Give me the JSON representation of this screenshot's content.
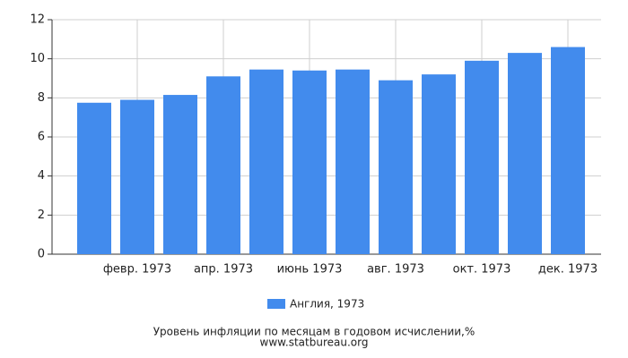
{
  "chart_data": {
    "type": "bar",
    "title": "Уровень инфляции по месяцам в годовом исчислении,%",
    "subtitle": "www.statbureau.org",
    "categories": [
      null,
      "февр. 1973",
      null,
      "апр. 1973",
      null,
      "июнь 1973",
      null,
      "авг. 1973",
      null,
      "окт. 1973",
      null,
      "дек. 1973"
    ],
    "series": [
      {
        "name": "Англия, 1973",
        "color": "#428bed",
        "values": [
          7.75,
          7.9,
          8.15,
          9.1,
          9.45,
          9.4,
          9.45,
          8.9,
          9.2,
          9.9,
          10.3,
          10.6
        ]
      }
    ],
    "ylim": [
      0,
      12
    ],
    "yticks": [
      0,
      2,
      4,
      6,
      8,
      10,
      12
    ],
    "grid": true
  }
}
